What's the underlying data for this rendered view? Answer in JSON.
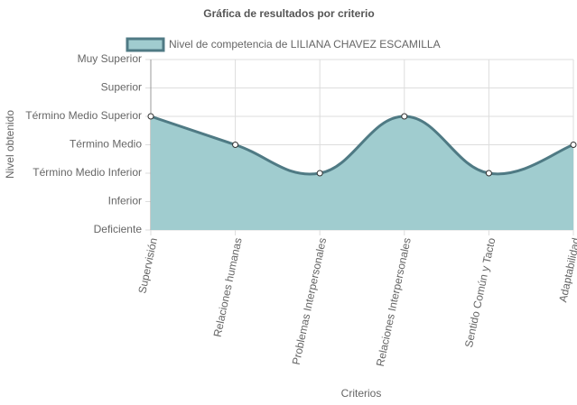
{
  "chart_data": {
    "type": "line",
    "title": "Gráfica de resultados por criterio",
    "x_label": "Criterios",
    "y_label": "Nivel obtenido",
    "categories": [
      "Supervisión",
      "Relaciones humanas",
      "Problemas Interpersonales",
      "Relaciones Interpersonales",
      "Sentido Común y Tacto",
      "Adaptabilidad"
    ],
    "series": [
      {
        "name": "Nivel de competencia de LILIANA CHAVEZ ESCAMILLA",
        "color": "#4f7a84",
        "fill": "#a0cccf",
        "values": [
          4,
          3,
          2,
          4,
          2,
          3
        ]
      }
    ],
    "ylim": [
      0,
      6
    ],
    "yticks": [
      {
        "value": 0,
        "label": "Deficiente"
      },
      {
        "value": 1,
        "label": "Inferior"
      },
      {
        "value": 2,
        "label": "Término Medio Inferior"
      },
      {
        "value": 3,
        "label": "Término Medio"
      },
      {
        "value": 4,
        "label": "Término Medio Superior"
      },
      {
        "value": 5,
        "label": "Superior"
      },
      {
        "value": 6,
        "label": "Muy Superior"
      }
    ],
    "grid": true,
    "filled": true,
    "legend": "top"
  }
}
